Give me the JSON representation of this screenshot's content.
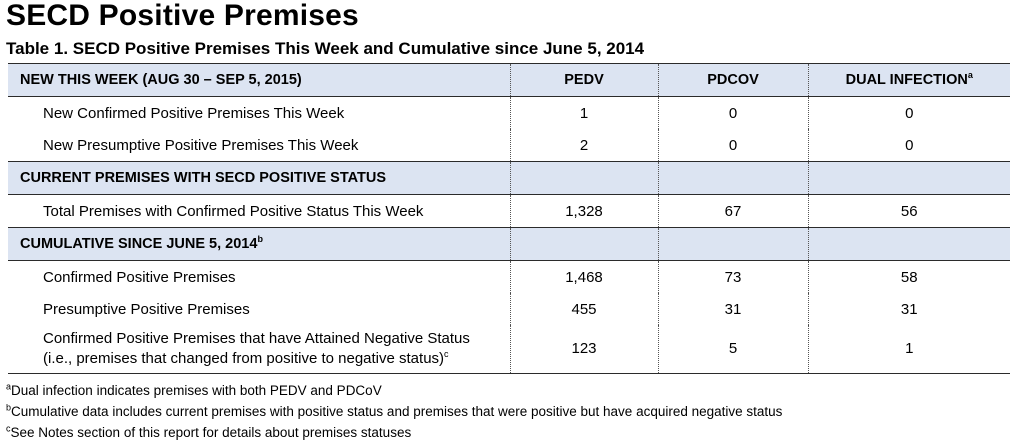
{
  "title": "SECD Positive Premises",
  "caption": "Table 1. SECD Positive Premises This Week and Cumulative since June 5, 2014",
  "columns": {
    "pedv": "PEDV",
    "pdcov": "PDCOV",
    "dual": "DUAL INFECTION",
    "dual_note": "a"
  },
  "sections": {
    "new_week": {
      "heading": "NEW THIS WEEK  (AUG 30 – SEP 5, 2015)",
      "rows": [
        {
          "label": "New Confirmed Positive Premises This Week",
          "pedv": "1",
          "pdcov": "0",
          "dual": "0"
        },
        {
          "label": "New Presumptive Positive Premises This Week",
          "pedv": "2",
          "pdcov": "0",
          "dual": "0"
        }
      ]
    },
    "current": {
      "heading": "CURRENT PREMISES WITH SECD POSITIVE STATUS",
      "rows": [
        {
          "label": "Total Premises with Confirmed Positive Status This Week",
          "pedv": "1,328",
          "pdcov": "67",
          "dual": "56"
        }
      ]
    },
    "cumulative": {
      "heading": "CUMULATIVE SINCE JUNE 5, 2014",
      "heading_note": "b",
      "rows": [
        {
          "label": "Confirmed Positive Premises",
          "pedv": "1,468",
          "pdcov": "73",
          "dual": "58"
        },
        {
          "label": "Presumptive Positive Premises",
          "pedv": "455",
          "pdcov": "31",
          "dual": "31"
        },
        {
          "label_line1": "Confirmed Positive Premises that have Attained Negative Status",
          "label_line2": "(i.e., premises that changed from positive to negative status)",
          "label_note": "c",
          "pedv": "123",
          "pdcov": "5",
          "dual": "1"
        }
      ]
    }
  },
  "footnotes": [
    {
      "mark": "a",
      "text": "Dual infection indicates premises with both PEDV and PDCoV"
    },
    {
      "mark": "b",
      "text": "Cumulative data includes current premises with positive status and premises that were positive but have acquired negative status"
    },
    {
      "mark": "c",
      "text": "See Notes section of this report for details about premises statuses"
    }
  ]
}
